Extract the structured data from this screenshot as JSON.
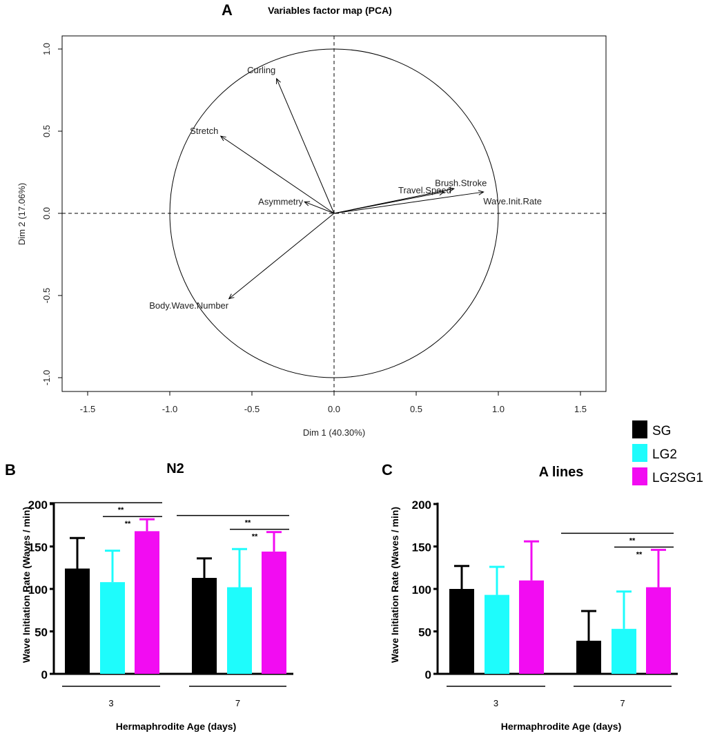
{
  "panels": {
    "a": "A",
    "b": "B",
    "c": "C"
  },
  "colors": {
    "SG": "#000000",
    "LG2": "#1efcfc",
    "LG2SG1": "#f20cf2"
  },
  "legend": [
    {
      "label": "SG",
      "color": "#000000"
    },
    {
      "label": "LG2",
      "color": "#1efcfc"
    },
    {
      "label": "LG2SG1",
      "color": "#f20cf2"
    }
  ],
  "chart_data": [
    {
      "type": "scatter",
      "subtype": "pca-variables-factor-map",
      "title": "Variables factor map (PCA)",
      "xlabel": "Dim 1 (40.30%)",
      "ylabel": "Dim 2 (17.06%)",
      "xlim": [
        -1.65,
        1.65
      ],
      "ylim": [
        -1.08,
        1.1
      ],
      "xticks": [
        -1.5,
        -1.0,
        -0.5,
        0.0,
        0.5,
        1.0,
        1.5
      ],
      "xtick_labels": [
        "-1.5",
        "-1.0",
        "-0.5",
        "0.0",
        "0.5",
        "1.0",
        "1.5"
      ],
      "yticks": [
        -1.0,
        -0.5,
        0.0,
        0.5,
        1.0
      ],
      "ytick_labels": [
        "-1.0",
        "-0.5",
        "0.0",
        "0.5",
        "1.0"
      ],
      "unit_circle": true,
      "vectors": [
        {
          "name": "Curling",
          "x": -0.35,
          "y": 0.82
        },
        {
          "name": "Stretch",
          "x": -0.69,
          "y": 0.47
        },
        {
          "name": "Asymmetry",
          "x": -0.18,
          "y": 0.07
        },
        {
          "name": "Body.Wave.Number",
          "x": -0.64,
          "y": -0.52
        },
        {
          "name": "Travel.Speed",
          "x": 0.67,
          "y": 0.13
        },
        {
          "name": "Brush.Stroke",
          "x": 0.73,
          "y": 0.15
        },
        {
          "name": "Wave.Init.Rate",
          "x": 0.91,
          "y": 0.13
        }
      ]
    },
    {
      "type": "bar",
      "title": "N2",
      "xlabel": "Hermaphrodite Age (days)",
      "ylabel": "Wave Initiation Rate (Waves / min)",
      "ylim": [
        0,
        200
      ],
      "yticks": [
        0,
        50,
        100,
        150,
        200
      ],
      "categories": [
        "3",
        "7"
      ],
      "series": [
        {
          "name": "SG",
          "values": [
            124,
            113
          ],
          "errors": [
            36,
            23
          ]
        },
        {
          "name": "LG2",
          "values": [
            108,
            102
          ],
          "errors": [
            37,
            45
          ]
        },
        {
          "name": "LG2SG1",
          "values": [
            168,
            144
          ],
          "errors": [
            14,
            23
          ]
        }
      ],
      "significance": [
        {
          "category": "3",
          "from": "SG",
          "to": "LG2SG1",
          "label": "**"
        },
        {
          "category": "3",
          "from": "LG2",
          "to": "LG2SG1",
          "label": "**"
        },
        {
          "category": "7",
          "from": "SG",
          "to": "LG2SG1",
          "label": "**"
        },
        {
          "category": "7",
          "from": "LG2",
          "to": "LG2SG1",
          "label": "**"
        }
      ]
    },
    {
      "type": "bar",
      "title": "A lines",
      "xlabel": "Hermaphrodite Age (days)",
      "ylabel": "Wave Initiation Rate (Waves / min)",
      "ylim": [
        0,
        200
      ],
      "yticks": [
        0,
        50,
        100,
        150,
        200
      ],
      "categories": [
        "3",
        "7"
      ],
      "series": [
        {
          "name": "SG",
          "values": [
            100,
            39
          ],
          "errors": [
            27,
            35
          ]
        },
        {
          "name": "LG2",
          "values": [
            93,
            53
          ],
          "errors": [
            33,
            44
          ]
        },
        {
          "name": "LG2SG1",
          "values": [
            110,
            102
          ],
          "errors": [
            46,
            44
          ]
        }
      ],
      "significance": [
        {
          "category": "7",
          "from": "SG",
          "to": "LG2SG1",
          "label": "**"
        },
        {
          "category": "7",
          "from": "LG2",
          "to": "LG2SG1",
          "label": "**"
        }
      ]
    }
  ]
}
